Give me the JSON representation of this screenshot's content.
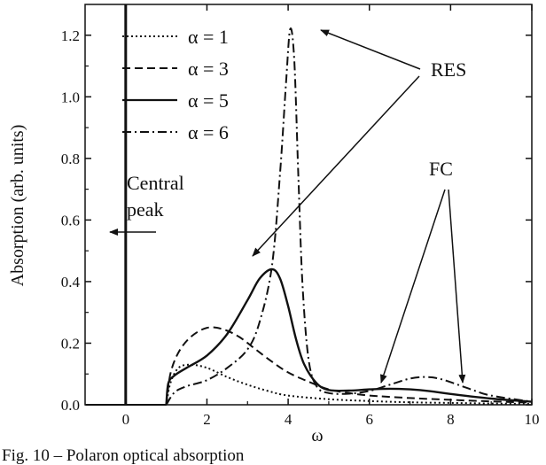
{
  "chart_data": {
    "type": "line",
    "title": "",
    "xlabel": "ω",
    "ylabel": "Absorption (arb. units)",
    "xlim": [
      -1,
      10
    ],
    "ylim": [
      0,
      1.3
    ],
    "xticks": [
      0,
      2,
      4,
      6,
      8,
      10
    ],
    "yticks": [
      0.0,
      0.2,
      0.4,
      0.6,
      0.8,
      1.0,
      1.2
    ],
    "xtick_labels": [
      "0",
      "2",
      "4",
      "6",
      "8",
      "10"
    ],
    "ytick_labels": [
      "0.0",
      "0.2",
      "0.4",
      "0.6",
      "0.8",
      "1.0",
      "1.2"
    ],
    "grid": false,
    "legend_position": "top-left",
    "series": [
      {
        "name": "α = 1",
        "style": "dotted",
        "x": [
          1.0,
          1.1,
          1.3,
          1.6,
          2.0,
          2.5,
          3.0,
          3.5,
          4.0,
          5.0,
          6.0,
          7.0,
          8.0,
          9.0,
          10.0
        ],
        "y": [
          0.0,
          0.07,
          0.12,
          0.13,
          0.12,
          0.09,
          0.065,
          0.045,
          0.03,
          0.018,
          0.012,
          0.008,
          0.006,
          0.004,
          0.003
        ]
      },
      {
        "name": "α = 3",
        "style": "dashed",
        "x": [
          1.0,
          1.1,
          1.3,
          1.6,
          2.0,
          2.4,
          2.8,
          3.2,
          3.6,
          4.0,
          4.5,
          5.0,
          5.5,
          6.0,
          7.0,
          8.0,
          9.0,
          10.0
        ],
        "y": [
          0.0,
          0.1,
          0.17,
          0.22,
          0.25,
          0.245,
          0.22,
          0.18,
          0.14,
          0.105,
          0.075,
          0.05,
          0.038,
          0.03,
          0.022,
          0.016,
          0.011,
          0.007
        ]
      },
      {
        "name": "α = 5",
        "style": "solid",
        "x": [
          1.0,
          1.05,
          1.2,
          1.5,
          2.0,
          2.5,
          3.0,
          3.3,
          3.6,
          3.8,
          4.0,
          4.2,
          4.4,
          4.7,
          5.0,
          5.5,
          6.0,
          6.5,
          7.0,
          7.5,
          8.0,
          9.0,
          10.0
        ],
        "y": [
          0.0,
          0.07,
          0.095,
          0.12,
          0.16,
          0.23,
          0.34,
          0.41,
          0.44,
          0.41,
          0.32,
          0.21,
          0.13,
          0.07,
          0.048,
          0.046,
          0.05,
          0.052,
          0.05,
          0.044,
          0.035,
          0.02,
          0.01
        ]
      },
      {
        "name": "α = 6",
        "style": "dashdot",
        "x": [
          1.0,
          1.2,
          1.5,
          2.0,
          2.5,
          3.0,
          3.3,
          3.6,
          3.8,
          3.95,
          4.05,
          4.15,
          4.25,
          4.35,
          4.5,
          4.7,
          5.0,
          5.5,
          6.0,
          6.5,
          7.0,
          7.4,
          7.8,
          8.5,
          9.0,
          10.0
        ],
        "y": [
          0.0,
          0.04,
          0.06,
          0.08,
          0.12,
          0.18,
          0.27,
          0.45,
          0.75,
          1.05,
          1.22,
          1.12,
          0.75,
          0.4,
          0.15,
          0.06,
          0.038,
          0.036,
          0.045,
          0.065,
          0.085,
          0.09,
          0.082,
          0.05,
          0.03,
          0.01
        ]
      }
    ],
    "vertical_line": {
      "x": 0
    },
    "annotations": {
      "central_peak": [
        "Central",
        "peak"
      ],
      "res": "RES",
      "fc": "FC"
    }
  },
  "caption": "Fig. 10 – Polaron optical absorption"
}
